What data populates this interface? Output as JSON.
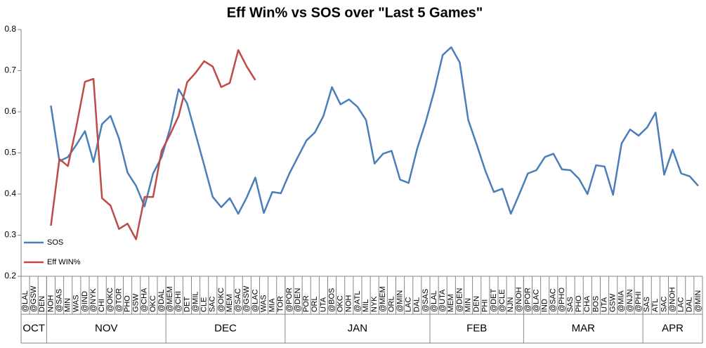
{
  "chart_data": {
    "type": "line",
    "title": "Eff Win% vs SOS over \"Last 5 Games\"",
    "category_groups": [
      {
        "label": "OCT",
        "categories": [
          "@LAL",
          "@GSW",
          "DEN"
        ]
      },
      {
        "label": "NOV",
        "categories": [
          "NOH",
          "@SAS",
          "MIN",
          "WAS",
          "@IND",
          "@NYK",
          "CHI",
          "@OKC",
          "@TOR",
          "PHO",
          "GSW",
          "@CHA",
          "OKC",
          "@DAL"
        ]
      },
      {
        "label": "DEC",
        "categories": [
          "@MEM",
          "@CHI",
          "DET",
          "@MIL",
          "CLE",
          "SAC",
          "@OKC",
          "MEM",
          "@SAC",
          "@GSW",
          "@LAC",
          "WAS",
          "MIA",
          "TOR"
        ]
      },
      {
        "label": "JAN",
        "categories": [
          "@POR",
          "@DEN",
          "POR",
          "ORL",
          "UTA",
          "@BOS",
          "OKC",
          "NOH",
          "@ATL",
          "MIL",
          "NYK",
          "@MEM",
          "ORL",
          "@MIN",
          "LAC",
          "DAL",
          "@SAS"
        ]
      },
      {
        "label": "FEB",
        "categories": [
          "@LAL",
          "@UTA",
          "MEM",
          "@DEN",
          "MIN",
          "DEN",
          "PHI",
          "@DET",
          "@CLE",
          "NJN",
          "@NOH"
        ]
      },
      {
        "label": "MAR",
        "categories": [
          "@POR",
          "@LAC",
          "IND",
          "@SAC",
          "@PHO",
          "SAS",
          "PHO",
          "CHA",
          "BOS",
          "UTA",
          "GSW",
          "@MIA",
          "@NJN",
          "@PHI"
        ]
      },
      {
        "label": "APR",
        "categories": [
          "SAS",
          "ATL",
          "SAC",
          "@NOH",
          "LAC",
          "DAL",
          "@MIN"
        ]
      }
    ],
    "series": [
      {
        "name": "SOS",
        "color": "#4a7ebb",
        "values": [
          null,
          null,
          null,
          0.615,
          0.48,
          0.49,
          0.52,
          0.553,
          0.478,
          0.57,
          0.59,
          0.535,
          0.452,
          0.42,
          0.37,
          0.45,
          0.49,
          0.56,
          0.655,
          0.62,
          0.545,
          0.47,
          0.393,
          0.368,
          0.39,
          0.352,
          0.392,
          0.44,
          0.354,
          0.405,
          0.402,
          0.45,
          0.49,
          0.53,
          0.55,
          0.59,
          0.66,
          0.618,
          0.63,
          0.612,
          0.58,
          0.474,
          0.498,
          0.505,
          0.435,
          0.427,
          0.51,
          0.575,
          0.65,
          0.738,
          0.757,
          0.72,
          0.58,
          0.52,
          0.457,
          0.405,
          0.413,
          0.352,
          0.4,
          0.45,
          0.458,
          0.49,
          0.498,
          0.46,
          0.458,
          0.437,
          0.4,
          0.47,
          0.467,
          0.398,
          0.523,
          0.557,
          0.542,
          0.562,
          0.598,
          0.447,
          0.508,
          0.45,
          0.443,
          0.42
        ]
      },
      {
        "name": "Eff WIN%",
        "color": "#be4b48",
        "values": [
          null,
          null,
          null,
          0.323,
          0.485,
          0.468,
          0.565,
          0.673,
          0.68,
          0.39,
          0.372,
          0.315,
          0.328,
          0.29,
          0.393,
          0.393,
          0.505,
          0.545,
          0.59,
          0.672,
          0.695,
          0.723,
          0.71,
          0.66,
          0.67,
          0.75,
          0.71,
          0.677,
          null,
          null,
          null,
          null,
          null,
          null,
          null,
          null,
          null,
          null,
          null,
          null,
          null,
          null,
          null,
          null,
          null,
          null,
          null,
          null,
          null,
          null,
          null,
          null,
          null,
          null,
          null,
          null,
          null,
          null,
          null,
          null,
          null,
          null,
          null,
          null,
          null,
          null,
          null,
          null,
          null,
          null,
          null,
          null,
          null,
          null,
          null,
          null,
          null,
          null,
          null,
          null
        ]
      }
    ],
    "ylim": [
      0.2,
      0.8
    ],
    "yticks": [
      0.2,
      0.3,
      0.4,
      0.5,
      0.6,
      0.7,
      0.8
    ],
    "grid": false,
    "legend": "lower-left"
  }
}
